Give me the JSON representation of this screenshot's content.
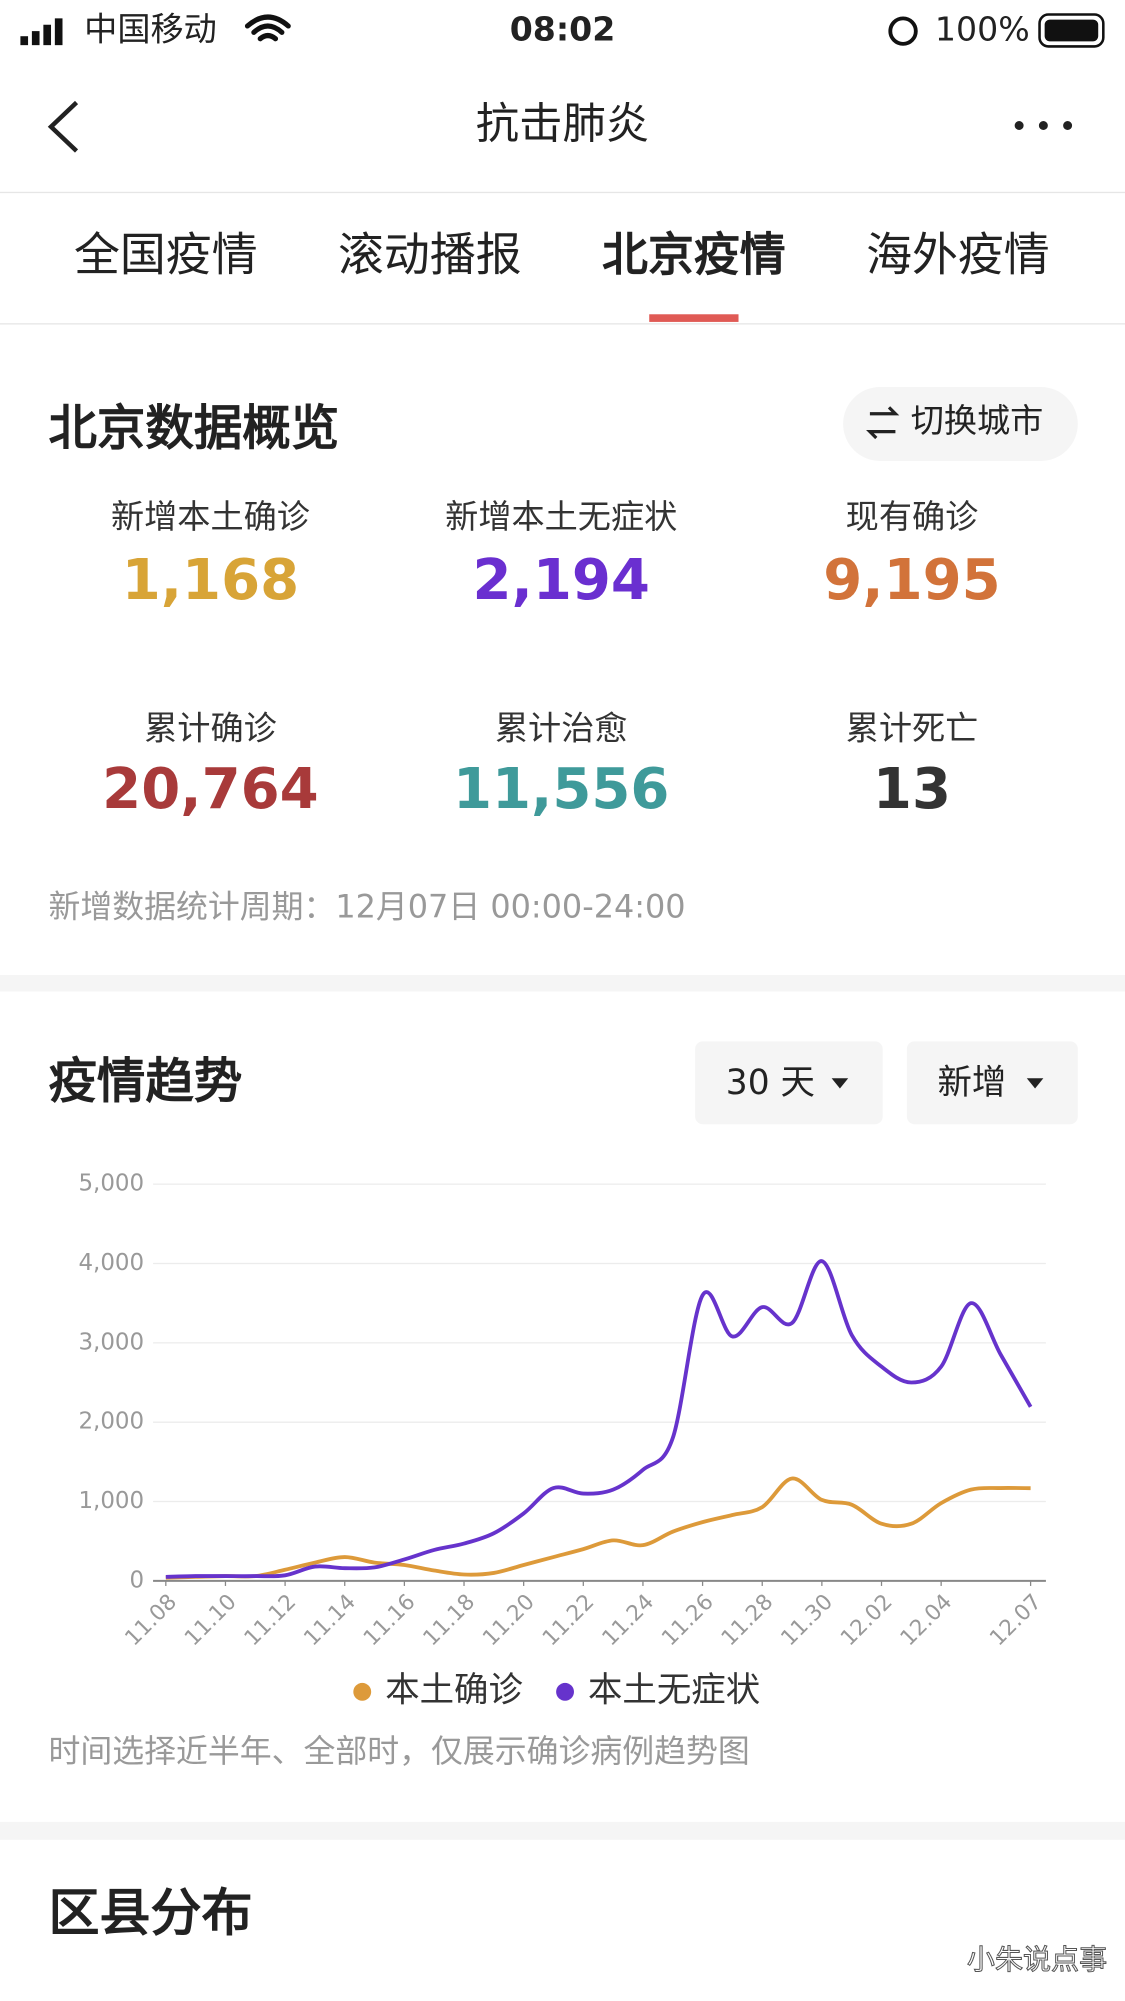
{
  "status_bar": {
    "carrier": "中国移动",
    "time": "08:02",
    "battery": "100%"
  },
  "nav": {
    "title": "抗击肺炎"
  },
  "tabs": {
    "items": [
      "全国疫情",
      "滚动播报",
      "北京疫情",
      "海外疫情"
    ],
    "active": 2
  },
  "overview": {
    "title": "北京数据概览",
    "switch_button": "切换城市",
    "stats": [
      {
        "label": "新增本土确诊",
        "value": "1,168",
        "color": "#d8a437"
      },
      {
        "label": "新增本土无症状",
        "value": "2,194",
        "color": "#6a2fd0"
      },
      {
        "label": "现有确诊",
        "value": "9,195",
        "color": "#d2733a"
      },
      {
        "label": "累计确诊",
        "value": "20,764",
        "color": "#a83a3a"
      },
      {
        "label": "累计治愈",
        "value": "11,556",
        "color": "#3f9a9a"
      },
      {
        "label": "累计死亡",
        "value": "13",
        "color": "#333333"
      }
    ],
    "period_note": "新增数据统计周期：12月07日 00:00-24:00"
  },
  "trend": {
    "title": "疫情趋势",
    "range_button": "30 天",
    "mode_button": "新增",
    "note": "时间选择近半年、全部时，仅展示确诊病例趋势图"
  },
  "chart_data": {
    "type": "line",
    "categories": [
      "11.08",
      null,
      "11.10",
      null,
      "11.12",
      null,
      "11.14",
      null,
      "11.16",
      null,
      "11.18",
      null,
      "11.20",
      null,
      "11.22",
      null,
      "11.24",
      null,
      "11.26",
      null,
      "11.28",
      null,
      "11.30",
      null,
      "12.02",
      null,
      "12.04",
      null,
      null,
      "12.07"
    ],
    "series": [
      {
        "name": "本土确诊",
        "color": "#dd9a3a",
        "values": [
          40,
          50,
          60,
          60,
          140,
          230,
          300,
          230,
          200,
          130,
          80,
          100,
          200,
          300,
          400,
          510,
          450,
          620,
          740,
          830,
          930,
          1290,
          1020,
          960,
          720,
          720,
          980,
          1150,
          1170,
          1168
        ]
      },
      {
        "name": "本土无症状",
        "color": "#6633cc",
        "values": [
          50,
          60,
          60,
          60,
          70,
          180,
          160,
          170,
          270,
          390,
          470,
          600,
          850,
          1170,
          1100,
          1150,
          1400,
          1800,
          3600,
          3080,
          3450,
          3250,
          4030,
          3100,
          2700,
          2500,
          2700,
          3500,
          2850,
          2194
        ]
      }
    ],
    "ylim": [
      0,
      5000
    ],
    "yticks": [
      0,
      {
        "value": 1000,
        "label": "1,000"
      },
      {
        "value": 2000,
        "label": "2,000"
      },
      {
        "value": 3000,
        "label": "3,000"
      },
      {
        "value": 4000,
        "label": "4,000"
      },
      {
        "value": 5000,
        "label": "5,000"
      }
    ],
    "grid": true
  },
  "district": {
    "title": "区县分布"
  },
  "watermark": "小朱说点事"
}
